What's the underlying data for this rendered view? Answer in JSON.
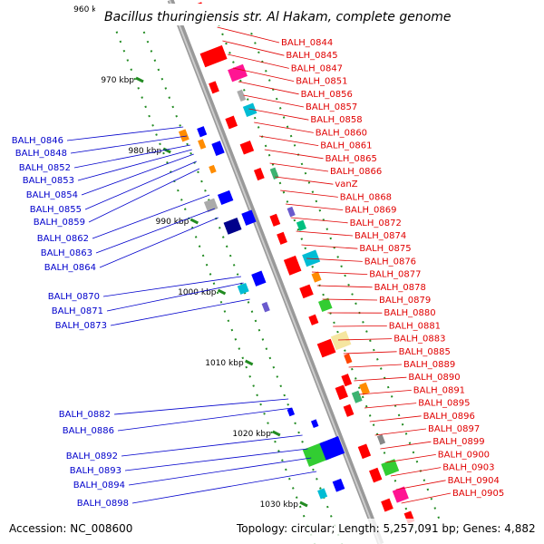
{
  "title": "Bacillus thuringiensis str. Al Hakam, complete genome",
  "accession": "Accession: NC_008600",
  "summary": "Topology: circular; Length: 5,257,091 bp; Genes: 4,882",
  "colors": {
    "right_labels": "#e00000",
    "left_labels": "#0000cc",
    "tick": "#228b22",
    "backbone": "#999999"
  },
  "ticks": [
    "960 kbp",
    "970 kbp",
    "980 kbp",
    "990 kbp",
    "1000 kbp",
    "1010 kbp",
    "1020 kbp",
    "1030 kbp"
  ],
  "right_genes": [
    "BALH_0844",
    "BALH_0845",
    "BALH_0847",
    "BALH_0851",
    "BALH_0856",
    "BALH_0857",
    "BALH_0858",
    "BALH_0860",
    "BALH_0861",
    "BALH_0865",
    "BALH_0866",
    "vanZ",
    "BALH_0868",
    "BALH_0869",
    "BALH_0872",
    "BALH_0874",
    "BALH_0875",
    "BALH_0876",
    "BALH_0877",
    "BALH_0878",
    "BALH_0879",
    "BALH_0880",
    "BALH_0881",
    "BALH_0883",
    "BALH_0885",
    "BALH_0889",
    "BALH_0890",
    "BALH_0891",
    "BALH_0895",
    "BALH_0896",
    "BALH_0897",
    "BALH_0899",
    "BALH_0900",
    "BALH_0903",
    "BALH_0904",
    "BALH_0905"
  ],
  "left_genes": [
    "BALH_0846",
    "BALH_0848",
    "BALH_0852",
    "BALH_0853",
    "BALH_0854",
    "BALH_0855",
    "BALH_0859",
    "BALH_0862",
    "BALH_0863",
    "BALH_0864",
    "BALH_0870",
    "BALH_0871",
    "BALH_0873",
    "BALH_0882",
    "BALH_0886",
    "BALH_0892",
    "BALH_0893",
    "BALH_0894",
    "BALH_0898"
  ]
}
